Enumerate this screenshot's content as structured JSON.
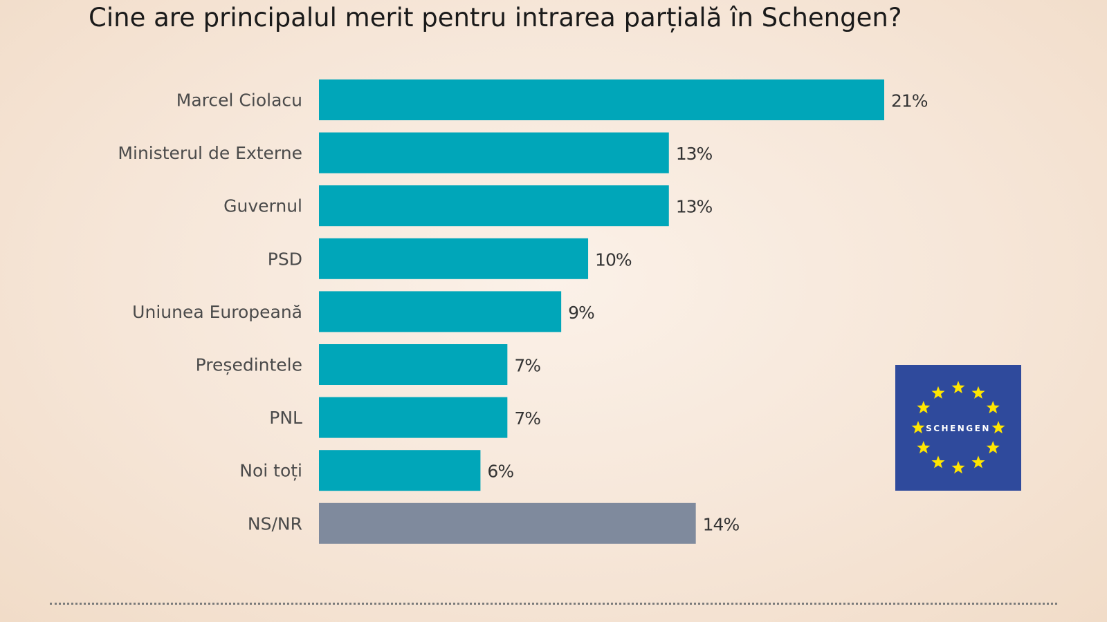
{
  "title": "Cine are principalul merit pentru intrarea parțială în Schengen?",
  "logo": {
    "text": "SCHENGEN",
    "icon": "eu-flag-stars-icon",
    "bg_color": "#2f4a9c",
    "star_color": "#ffe600"
  },
  "colors": {
    "primary_bar": "#00a6b9",
    "unknown_bar": "#7f8a9d"
  },
  "chart_data": {
    "type": "bar",
    "orientation": "horizontal",
    "title": "Cine are principalul merit pentru intrarea parțială în Schengen?",
    "xlabel": "",
    "ylabel": "",
    "categories": [
      "Marcel Ciolacu",
      "Ministerul de Externe",
      "Guvernul",
      "PSD",
      "Uniunea Europeană",
      "Președintele",
      "PNL",
      "Noi toți",
      "NS/NR"
    ],
    "values": [
      21,
      13,
      13,
      10,
      9,
      7,
      7,
      6,
      14
    ],
    "value_labels": [
      "21%",
      "13%",
      "13%",
      "10%",
      "9%",
      "7%",
      "7%",
      "6%",
      "14%"
    ],
    "bar_colors": [
      "#00a6b9",
      "#00a6b9",
      "#00a6b9",
      "#00a6b9",
      "#00a6b9",
      "#00a6b9",
      "#00a6b9",
      "#00a6b9",
      "#7f8a9d"
    ],
    "xlim": [
      0,
      21
    ],
    "grid": false,
    "legend": "none"
  }
}
